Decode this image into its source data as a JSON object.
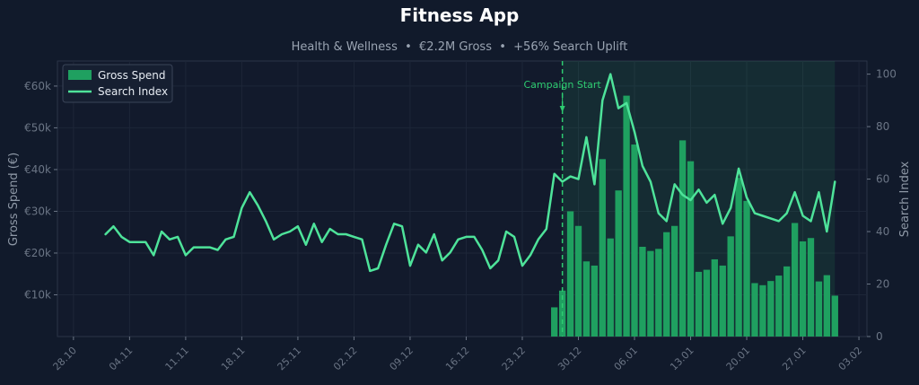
{
  "colors": {
    "background": "#111a2b",
    "plot_background": "#121a2c",
    "bar": "#1fa060",
    "line": "#4ee39a",
    "campaign": "#2ecc71",
    "title": "#ffffff",
    "subtitle": "#9aa4b2",
    "tick": "#6b7585",
    "axis_label": "#8e98a6"
  },
  "chart_data": {
    "type": "bar+line",
    "title": "Fitness App",
    "subtitle": "Health & Wellness  •  €2.2M Gross  •  +56% Search Uplift",
    "ylabel_left": "Gross Spend (€)",
    "ylabel_right": "Search Index",
    "xlim": [
      "2024-10-26",
      "2025-02-04"
    ],
    "ylim_left": [
      0,
      66000
    ],
    "ylim_right": [
      0,
      105
    ],
    "left_ticks": [
      10000,
      20000,
      30000,
      40000,
      50000,
      60000
    ],
    "left_tick_labels": [
      "€10k",
      "€20k",
      "€30k",
      "€40k",
      "€50k",
      "€60k"
    ],
    "right_ticks": [
      0,
      20,
      40,
      60,
      80,
      100
    ],
    "right_tick_labels": [
      "0",
      "20",
      "40",
      "60",
      "80",
      "100"
    ],
    "x_ticks": [
      "2024-10-28",
      "2024-11-04",
      "2024-11-11",
      "2024-11-18",
      "2024-11-25",
      "2024-12-02",
      "2024-12-09",
      "2024-12-16",
      "2024-12-23",
      "2024-12-30",
      "2025-01-06",
      "2025-01-13",
      "2025-01-20",
      "2025-01-27",
      "2025-02-03"
    ],
    "x_tick_labels": [
      "28.10",
      "04.11",
      "11.11",
      "18.11",
      "25.11",
      "02.12",
      "09.12",
      "16.12",
      "23.12",
      "30.12",
      "06.01",
      "13.01",
      "20.01",
      "27.01",
      "03.02"
    ],
    "legend": {
      "position": "top-left",
      "entries": [
        "Gross Spend",
        "Search Index"
      ]
    },
    "campaign": {
      "date": "2024-12-28",
      "label": "Campaign Start",
      "shade_until": "2025-01-31"
    },
    "bars": {
      "name": "Gross Spend",
      "start_date": "2024-12-27",
      "values": [
        7000,
        11000,
        30000,
        26500,
        18000,
        17000,
        42500,
        23500,
        35000,
        57700,
        46000,
        21500,
        20500,
        21000,
        25000,
        26500,
        47000,
        42000,
        15500,
        16000,
        18500,
        17000,
        24000,
        38000,
        32500,
        12800,
        12300,
        13300,
        14600,
        16800,
        27200,
        22800,
        23600,
        13200,
        14700,
        9800
      ]
    },
    "line": {
      "name": "Search Index",
      "start_date": "2024-11-01",
      "values": [
        39,
        42,
        38,
        36,
        36,
        36,
        31,
        40,
        37,
        38,
        31,
        34,
        34,
        34,
        33,
        37,
        38,
        49,
        55,
        50,
        44,
        37,
        39,
        40,
        42,
        35,
        43,
        36,
        41,
        39,
        39,
        38,
        37,
        25,
        26,
        35,
        43,
        42,
        27,
        35,
        32,
        39,
        29,
        32,
        37,
        38,
        38,
        33,
        26,
        29,
        40,
        38,
        27,
        31,
        37,
        41,
        62,
        59,
        61,
        60,
        76,
        58,
        90,
        100,
        87,
        89,
        78,
        65,
        59,
        47,
        44,
        58,
        54,
        52,
        56,
        51,
        54,
        43,
        49,
        64,
        53,
        47,
        46,
        45,
        44,
        47,
        55,
        46,
        44,
        55,
        40,
        59
      ]
    }
  }
}
